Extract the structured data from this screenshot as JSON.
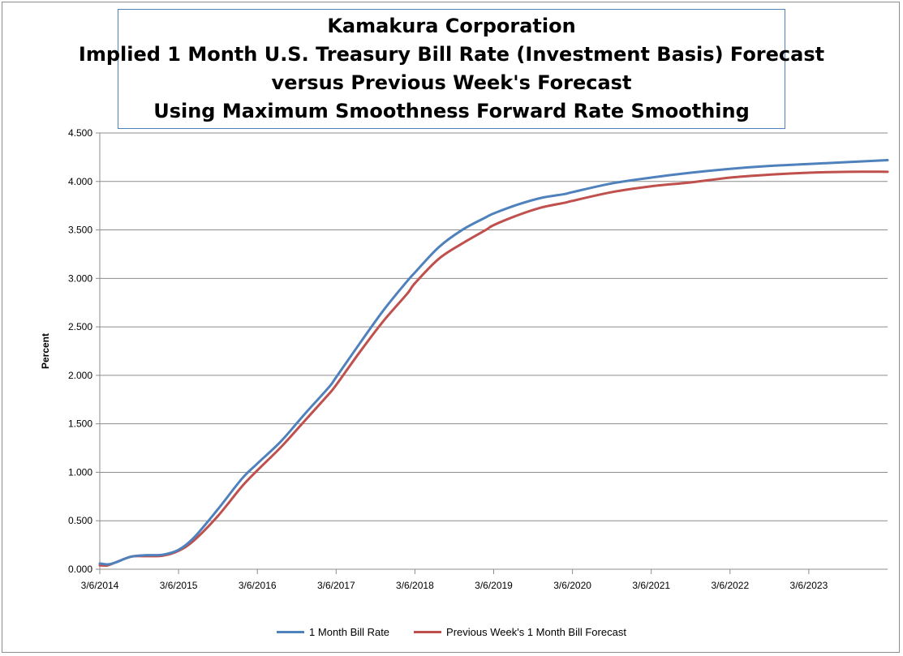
{
  "chart_data": {
    "type": "line",
    "title_lines": [
      "Kamakura Corporation",
      "Implied 1 Month U.S. Treasury Bill Rate (Investment Basis) Forecast",
      "versus  Previous Week's Forecast",
      "Using Maximum Smoothness Forward Rate Smoothing"
    ],
    "ylabel": "Percent",
    "xlabel": "",
    "ylim": [
      0,
      4.5
    ],
    "yticks": [
      "0.000",
      "0.500",
      "1.000",
      "1.500",
      "2.000",
      "2.500",
      "3.000",
      "3.500",
      "4.000",
      "4.500"
    ],
    "xticks": [
      "3/6/2014",
      "3/6/2015",
      "3/6/2016",
      "3/6/2017",
      "3/6/2018",
      "3/6/2019",
      "3/6/2020",
      "3/6/2021",
      "3/6/2022",
      "3/6/2023"
    ],
    "x_start": "3/6/2014",
    "x_end": "2/2024",
    "grid": "horizontal",
    "legend_position": "bottom",
    "series": [
      {
        "name": "1 Month  Bill Rate",
        "color": "#4f81bd",
        "x": [
          2014.0,
          2014.1,
          2014.2,
          2014.4,
          2014.6,
          2014.8,
          2015.0,
          2015.2,
          2015.5,
          2015.8,
          2016.0,
          2016.3,
          2016.6,
          2016.9,
          2017.0,
          2017.3,
          2017.6,
          2017.9,
          2018.0,
          2018.3,
          2018.6,
          2018.9,
          2019.0,
          2019.3,
          2019.6,
          2019.9,
          2020.0,
          2020.5,
          2021.0,
          2021.5,
          2022.0,
          2022.5,
          2023.0,
          2023.5,
          2024.0
        ],
        "values": [
          0.06,
          0.05,
          0.07,
          0.13,
          0.145,
          0.15,
          0.2,
          0.33,
          0.62,
          0.93,
          1.09,
          1.32,
          1.6,
          1.87,
          1.98,
          2.33,
          2.67,
          2.97,
          3.06,
          3.32,
          3.5,
          3.63,
          3.67,
          3.76,
          3.83,
          3.87,
          3.89,
          3.98,
          4.04,
          4.09,
          4.13,
          4.16,
          4.18,
          4.2,
          4.22
        ]
      },
      {
        "name": "Previous Week's 1 Month  Bill Forecast",
        "color": "#c0504d",
        "x": [
          2014.0,
          2014.1,
          2014.2,
          2014.4,
          2014.6,
          2014.8,
          2015.0,
          2015.2,
          2015.5,
          2015.8,
          2016.0,
          2016.3,
          2016.6,
          2016.9,
          2017.0,
          2017.3,
          2017.6,
          2017.9,
          2018.0,
          2018.3,
          2018.6,
          2018.9,
          2019.0,
          2019.3,
          2019.6,
          2019.9,
          2020.0,
          2020.5,
          2021.0,
          2021.5,
          2022.0,
          2022.5,
          2023.0,
          2023.5,
          2024.0
        ],
        "values": [
          0.04,
          0.04,
          0.07,
          0.13,
          0.135,
          0.14,
          0.19,
          0.3,
          0.55,
          0.85,
          1.02,
          1.26,
          1.53,
          1.8,
          1.9,
          2.24,
          2.56,
          2.84,
          2.95,
          3.2,
          3.36,
          3.5,
          3.55,
          3.65,
          3.73,
          3.78,
          3.8,
          3.89,
          3.95,
          3.99,
          4.04,
          4.07,
          4.09,
          4.1,
          4.1
        ]
      }
    ]
  }
}
